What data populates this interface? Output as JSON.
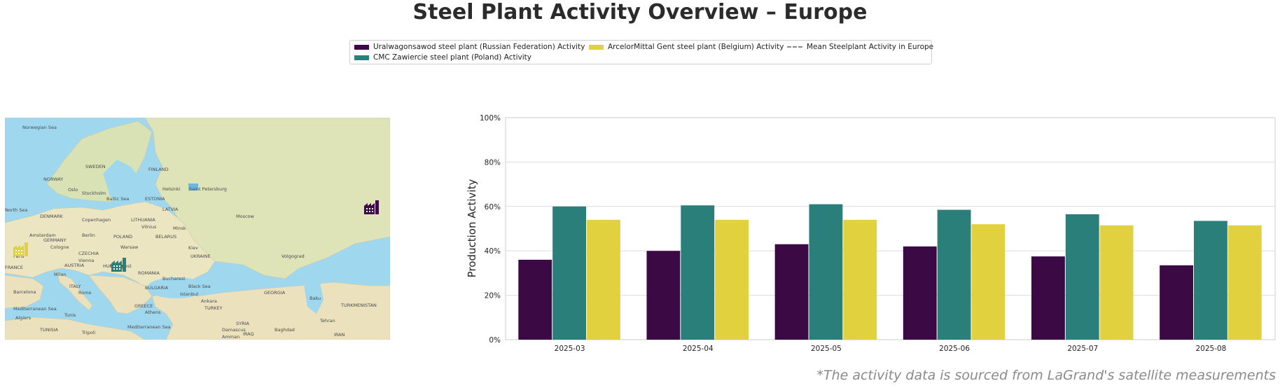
{
  "title": "Steel Plant Activity Overview – Europe",
  "footnote": "*The activity data is sourced from LaGrand's satellite measurements",
  "legend": [
    {
      "label": "Uralwagonsawod steel plant (Russian Federation) Activity",
      "color": "#3b0a45",
      "style": "bar"
    },
    {
      "label": "CMC Zawiercie steel plant (Poland) Activity",
      "color": "#2a7f7b",
      "style": "bar"
    },
    {
      "label": "ArcelorMittal Gent steel plant (Belgium) Activity",
      "color": "#e2d13e",
      "style": "bar"
    },
    {
      "label": "Mean Steelplant Activity in Europe",
      "color": "#8a8a8a",
      "style": "dashed"
    }
  ],
  "map": {
    "labels": [
      "Norwegian Sea",
      "SWEDEN",
      "FINLAND",
      "NORWAY",
      "Oslo",
      "Stockholm",
      "Helsinki",
      "Saint Petersburg",
      "ESTONIA",
      "Baltic Sea",
      "LATVIA",
      "North Sea",
      "DENMARK",
      "Copenhagen",
      "LITHUANIA",
      "Vilnius",
      "Minsk",
      "Moscow",
      "Amsterdam",
      "Berlin",
      "POLAND",
      "BELARUS",
      "GERMANY",
      "Cologne",
      "Warsaw",
      "Kiev",
      "Paris",
      "CZECHIA",
      "Vienna",
      "AUSTRIA",
      "HUNGARY",
      "UKRAINE",
      "Volgograd",
      "FRANCE",
      "Budapest",
      "ROMANIA",
      "Milan",
      "Bucharest",
      "ITALY",
      "BULGARIA",
      "Black Sea",
      "Barcelona",
      "Rome",
      "Istanbul",
      "GEORGIA",
      "Baku",
      "TURKMENISTAN",
      "Ankara",
      "TURKEY",
      "Mediterranean Sea",
      "GREECE",
      "Athens",
      "Tunis",
      "Algiers",
      "TUNISIA",
      "Tripoli",
      "Mediterranean Sea",
      "SYRIA",
      "Damascus",
      "Baghdad",
      "IRAQ",
      "Amman",
      "Tehran",
      "IRAN"
    ],
    "markers": [
      {
        "plant": "Uralwagonsawod",
        "color": "#3b0a45"
      },
      {
        "plant": "CMC Zawiercie",
        "color": "#2a7f7b"
      },
      {
        "plant": "ArcelorMittal Gent",
        "color": "#e2d13e"
      }
    ]
  },
  "chart_data": {
    "type": "bar",
    "title": "Steel Plant Activity Overview – Europe",
    "xlabel": "",
    "ylabel": "Production Activity",
    "categories": [
      "2025-03",
      "2025-04",
      "2025-05",
      "2025-06",
      "2025-07",
      "2025-08"
    ],
    "series": [
      {
        "name": "Uralwagonsawod steel plant (Russian Federation) Activity",
        "color": "#3b0a45",
        "values": [
          36,
          40,
          43,
          42,
          37.5,
          33.5
        ]
      },
      {
        "name": "CMC Zawiercie steel plant (Poland) Activity",
        "color": "#2a7f7b",
        "values": [
          60,
          60.5,
          61,
          58.5,
          56.5,
          53.5
        ]
      },
      {
        "name": "ArcelorMittal Gent steel plant (Belgium) Activity",
        "color": "#e2d13e",
        "values": [
          54,
          54,
          54,
          52,
          51.5,
          51.5
        ]
      }
    ],
    "ylim": [
      0,
      100
    ],
    "yticks": [
      "0%",
      "20%",
      "40%",
      "60%",
      "80%",
      "100%"
    ],
    "ytick_values": [
      0,
      20,
      40,
      60,
      80,
      100
    ],
    "grid": true,
    "legend_position": "top-center"
  }
}
